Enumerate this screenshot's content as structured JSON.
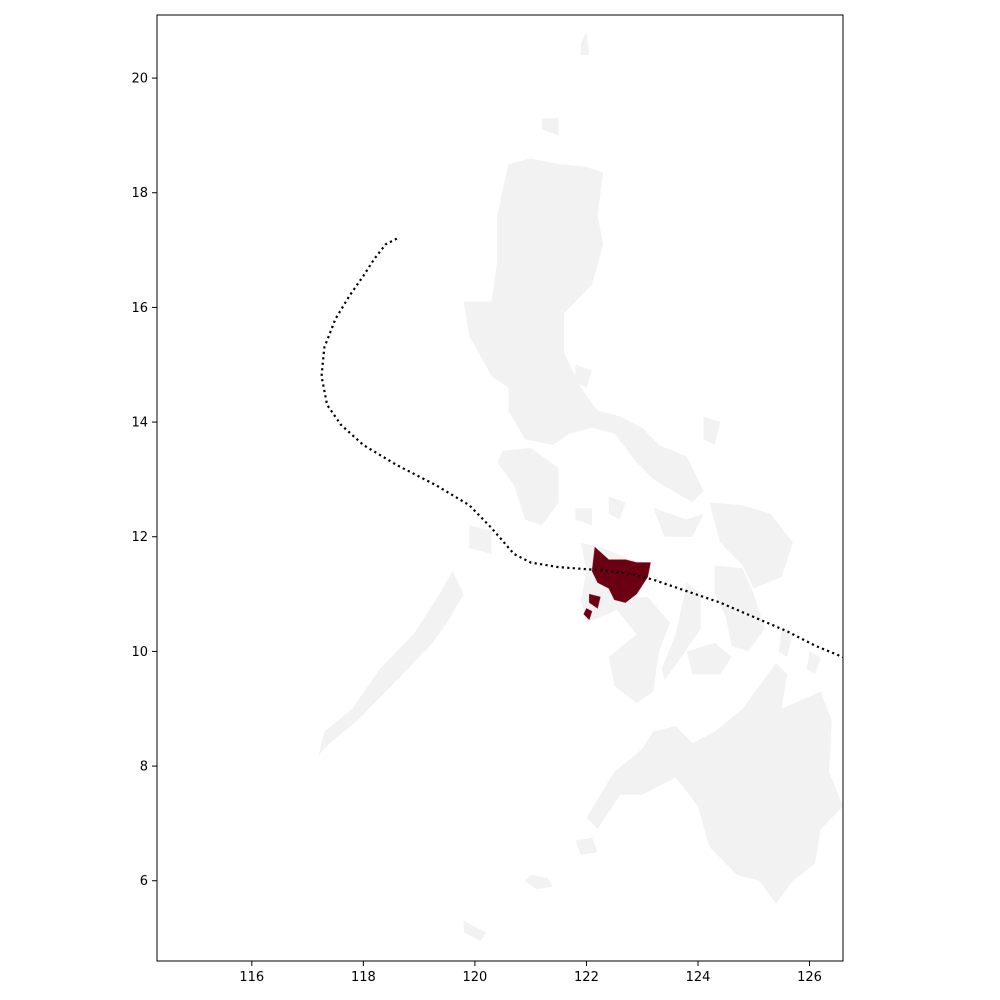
{
  "chart_data": {
    "type": "map",
    "title": "",
    "xlabel": "",
    "ylabel": "",
    "xlim": [
      114.3,
      126.6
    ],
    "ylim": [
      4.6,
      21.1
    ],
    "x_ticks": [
      116,
      118,
      120,
      122,
      124,
      126
    ],
    "y_ticks": [
      6,
      8,
      10,
      12,
      14,
      16,
      18,
      20
    ],
    "x_tick_labels": [
      "116",
      "118",
      "120",
      "122",
      "124",
      "126"
    ],
    "y_tick_labels": [
      "6",
      "8",
      "10",
      "12",
      "14",
      "16",
      "18",
      "20"
    ],
    "land_color": "#f2f2f2",
    "highlight_color": "#6b0012",
    "track_color": "#000000",
    "track_style": "dotted",
    "highlight_region": "Panay",
    "track": [
      [
        118.6,
        17.2
      ],
      [
        118.4,
        17.1
      ],
      [
        118.2,
        16.85
      ],
      [
        118.0,
        16.55
      ],
      [
        117.75,
        16.2
      ],
      [
        117.5,
        15.8
      ],
      [
        117.3,
        15.3
      ],
      [
        117.25,
        14.8
      ],
      [
        117.35,
        14.3
      ],
      [
        117.6,
        13.95
      ],
      [
        118.0,
        13.6
      ],
      [
        118.6,
        13.25
      ],
      [
        119.3,
        12.9
      ],
      [
        119.9,
        12.55
      ],
      [
        120.3,
        12.15
      ],
      [
        120.7,
        11.7
      ],
      [
        121.0,
        11.55
      ],
      [
        121.5,
        11.47
      ],
      [
        122.2,
        11.42
      ],
      [
        122.8,
        11.35
      ],
      [
        123.2,
        11.25
      ],
      [
        123.8,
        11.05
      ],
      [
        124.4,
        10.85
      ],
      [
        125.0,
        10.6
      ],
      [
        125.6,
        10.35
      ],
      [
        126.1,
        10.1
      ],
      [
        126.6,
        9.9
      ]
    ]
  }
}
